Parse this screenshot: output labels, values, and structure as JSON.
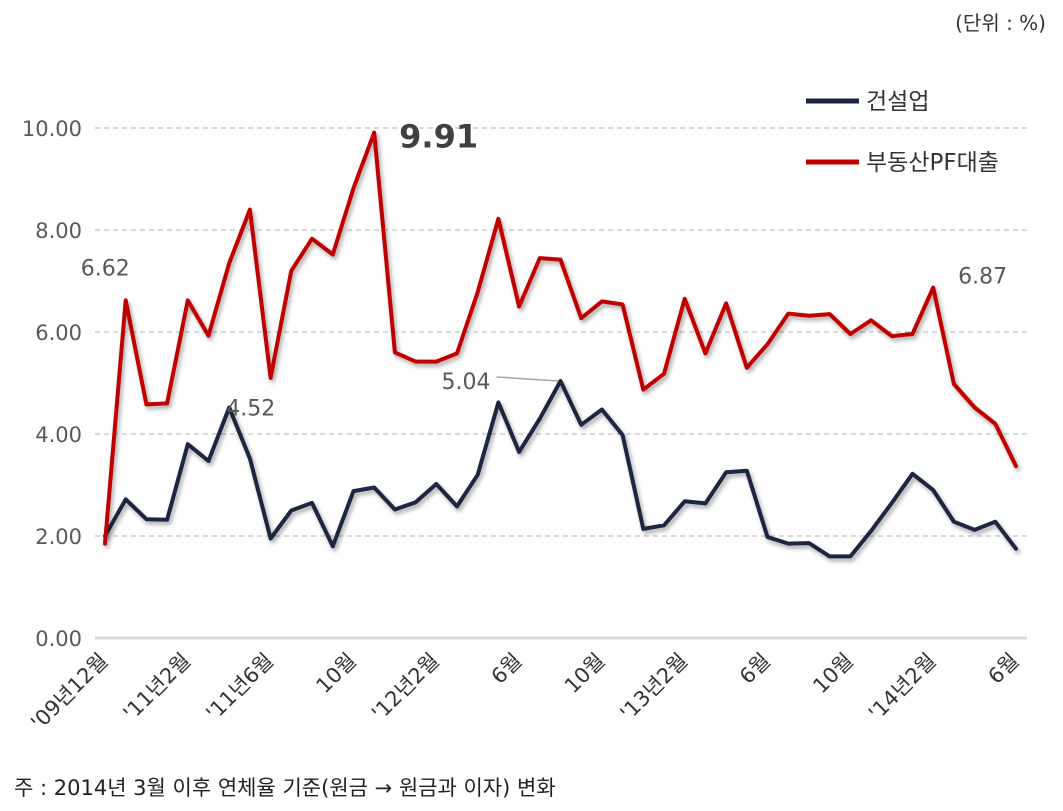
{
  "chart_data": {
    "type": "line",
    "unit_label": "(단위 : %)",
    "note": "주 : 2014년 3월 이후 연체율 기준(원금 → 원금과 이자) 변화",
    "ylim": [
      0,
      10
    ],
    "yticks": [
      "0.00",
      "2.00",
      "4.00",
      "6.00",
      "8.00",
      "10.00"
    ],
    "grid": true,
    "legend_position": "top-right",
    "colors": {
      "construction": "#1b2740",
      "pf": "#c00000"
    },
    "x_tick_labels": [
      {
        "index": 0,
        "label": "'09년12월"
      },
      {
        "index": 4,
        "label": "'11년2월"
      },
      {
        "index": 8,
        "label": "'11년6월"
      },
      {
        "index": 12,
        "label": "10월"
      },
      {
        "index": 16,
        "label": "'12년2월"
      },
      {
        "index": 20,
        "label": "6월"
      },
      {
        "index": 24,
        "label": "10월"
      },
      {
        "index": 28,
        "label": "'13년2월"
      },
      {
        "index": 32,
        "label": "6월"
      },
      {
        "index": 36,
        "label": "10월"
      },
      {
        "index": 40,
        "label": "'14년2월"
      },
      {
        "index": 44,
        "label": "6월"
      }
    ],
    "series": [
      {
        "name": "건설업",
        "key": "construction",
        "values": [
          2.0,
          2.72,
          2.33,
          2.32,
          3.8,
          3.47,
          4.52,
          3.52,
          1.95,
          2.5,
          2.65,
          1.8,
          2.88,
          2.95,
          2.52,
          2.66,
          3.02,
          2.58,
          3.2,
          4.62,
          3.65,
          4.3,
          5.04,
          4.18,
          4.48,
          3.98,
          2.14,
          2.21,
          2.68,
          2.64,
          3.25,
          3.28,
          1.98,
          1.85,
          1.86,
          1.6,
          1.6,
          2.1,
          2.65,
          3.22,
          2.9,
          2.28,
          2.12,
          2.28,
          1.75
        ]
      },
      {
        "name": "부동산PF대출",
        "key": "pf",
        "values": [
          1.85,
          6.62,
          4.58,
          4.6,
          6.62,
          5.93,
          7.35,
          8.4,
          5.1,
          7.2,
          7.83,
          7.52,
          8.82,
          9.91,
          5.6,
          5.42,
          5.42,
          5.58,
          6.78,
          8.22,
          6.5,
          7.45,
          7.42,
          6.27,
          6.6,
          6.54,
          4.87,
          5.18,
          6.65,
          5.58,
          6.56,
          5.3,
          5.76,
          6.36,
          6.32,
          6.35,
          5.96,
          6.23,
          5.92,
          5.96,
          6.87,
          4.98,
          4.52,
          4.2,
          3.37
        ]
      }
    ],
    "annotations": [
      {
        "label": "6.62",
        "series": "pf",
        "index": 1
      },
      {
        "label": "9.91",
        "series": "pf",
        "index": 13
      },
      {
        "label": "6.87",
        "series": "pf",
        "index": 40
      },
      {
        "label": "4.52",
        "series": "construction",
        "index": 6
      },
      {
        "label": "5.04",
        "series": "construction",
        "index": 22
      }
    ]
  }
}
